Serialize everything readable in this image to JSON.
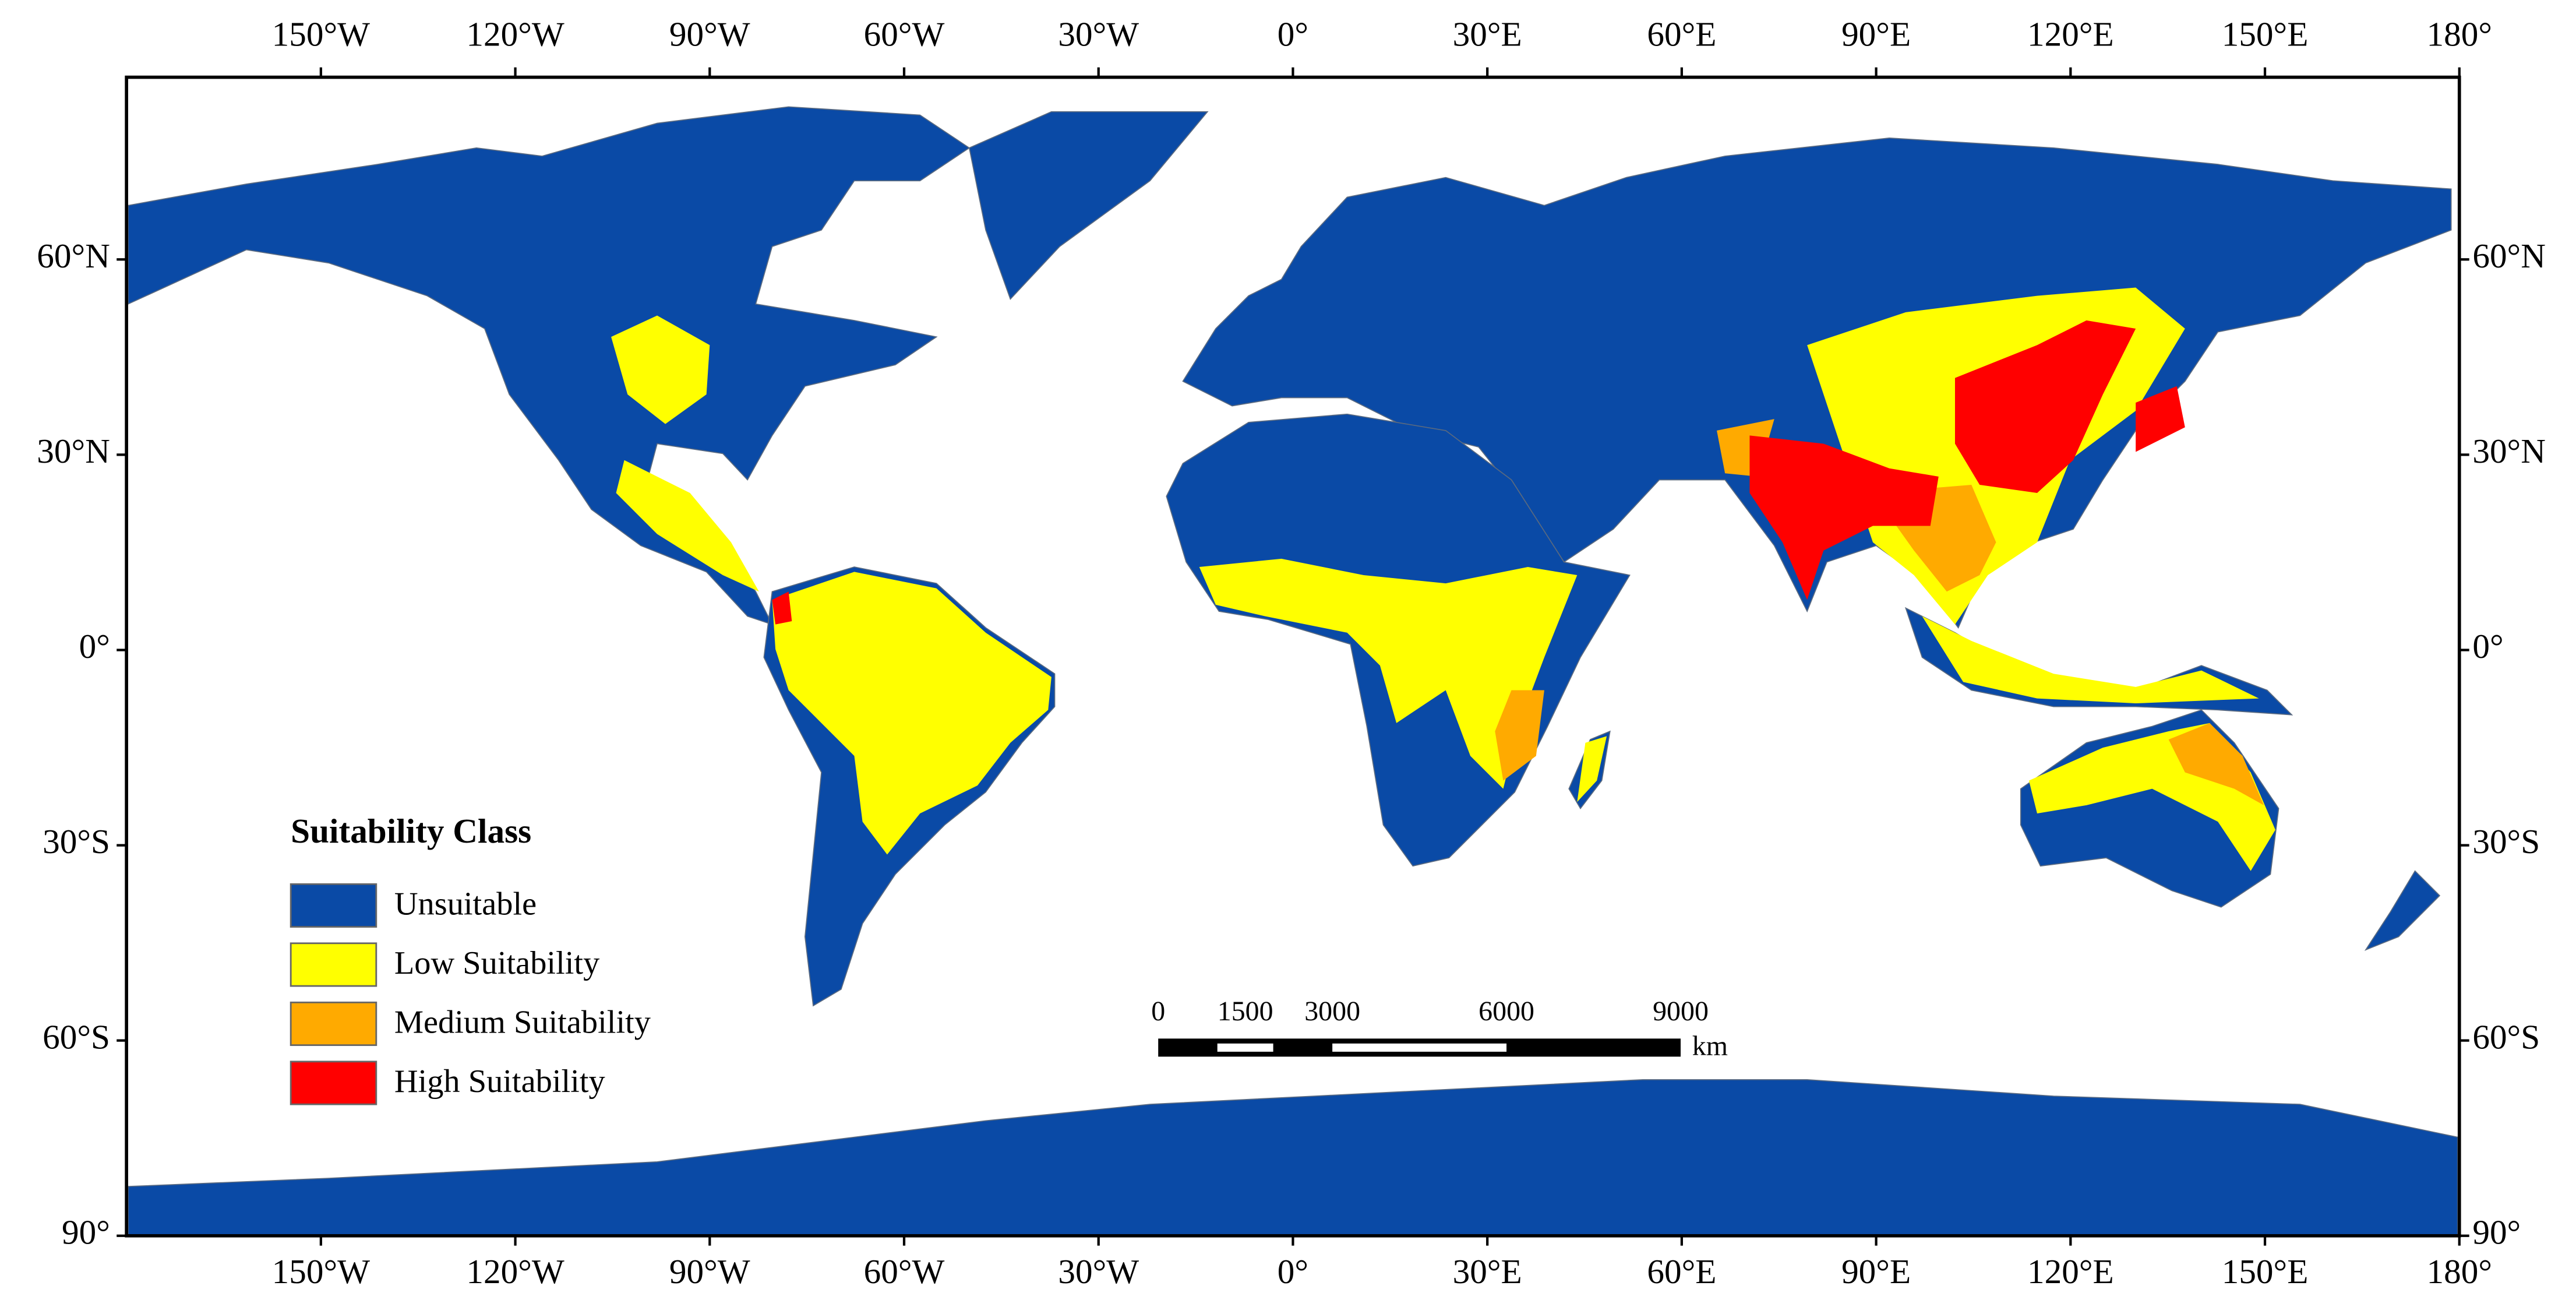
{
  "map": {
    "lon_range": [
      -180,
      180
    ],
    "lat_range": [
      -90,
      88
    ],
    "lon_ticks": [
      {
        "value": -150,
        "label": "150°W"
      },
      {
        "value": -120,
        "label": "120°W"
      },
      {
        "value": -90,
        "label": "90°W"
      },
      {
        "value": -60,
        "label": "60°W"
      },
      {
        "value": -30,
        "label": "30°W"
      },
      {
        "value": 0,
        "label": "0°"
      },
      {
        "value": 30,
        "label": "30°E"
      },
      {
        "value": 60,
        "label": "60°E"
      },
      {
        "value": 90,
        "label": "90°E"
      },
      {
        "value": 120,
        "label": "120°E"
      },
      {
        "value": 150,
        "label": "150°E"
      },
      {
        "value": 180,
        "label": "180°"
      }
    ],
    "lat_ticks": [
      {
        "value": 60,
        "label": "60°N"
      },
      {
        "value": 30,
        "label": "30°N"
      },
      {
        "value": 0,
        "label": "0°"
      },
      {
        "value": -30,
        "label": "30°S"
      },
      {
        "value": -60,
        "label": "60°S"
      },
      {
        "value": -90,
        "label": "90°"
      }
    ],
    "legend": {
      "title": "Suitability Class",
      "items": [
        {
          "label": "Unsuitable",
          "color": "#0a4aa6"
        },
        {
          "label": "Low Suitability",
          "color": "#ffff00"
        },
        {
          "label": "Medium Suitability",
          "color": "#ffaa00"
        },
        {
          "label": "High Suitability",
          "color": "#ff0000"
        }
      ]
    },
    "scale_bar": {
      "ticks": [
        0,
        1500,
        3000,
        6000,
        9000
      ],
      "unit": "km"
    }
  }
}
